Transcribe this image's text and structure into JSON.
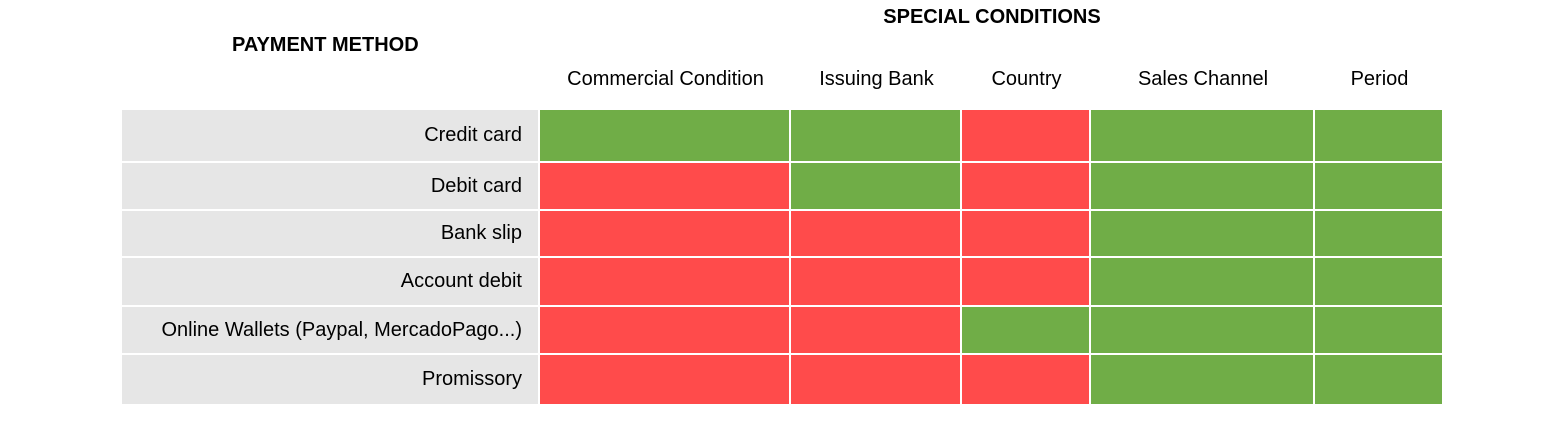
{
  "chart_data": {
    "type": "table",
    "title": "SPECIAL CONDITIONS",
    "row_header": "PAYMENT METHOD",
    "columns": [
      "Commercial Condition",
      "Issuing Bank",
      "Country",
      "Sales Channel",
      "Period"
    ],
    "rows": [
      {
        "label": "Credit card",
        "values": [
          true,
          true,
          false,
          true,
          true
        ]
      },
      {
        "label": "Debit card",
        "values": [
          false,
          true,
          false,
          true,
          true
        ]
      },
      {
        "label": "Bank slip",
        "values": [
          false,
          false,
          false,
          true,
          true
        ]
      },
      {
        "label": "Account debit",
        "values": [
          false,
          false,
          false,
          true,
          true
        ]
      },
      {
        "label": "Online Wallets (Paypal, MercadoPago...)",
        "values": [
          false,
          false,
          true,
          true,
          true
        ]
      },
      {
        "label": "Promissory",
        "values": [
          false,
          false,
          false,
          true,
          true
        ]
      }
    ],
    "colors": {
      "true": "#70ad47",
      "false": "#ff4b4b",
      "label_bg": "#e6e6e6"
    }
  }
}
